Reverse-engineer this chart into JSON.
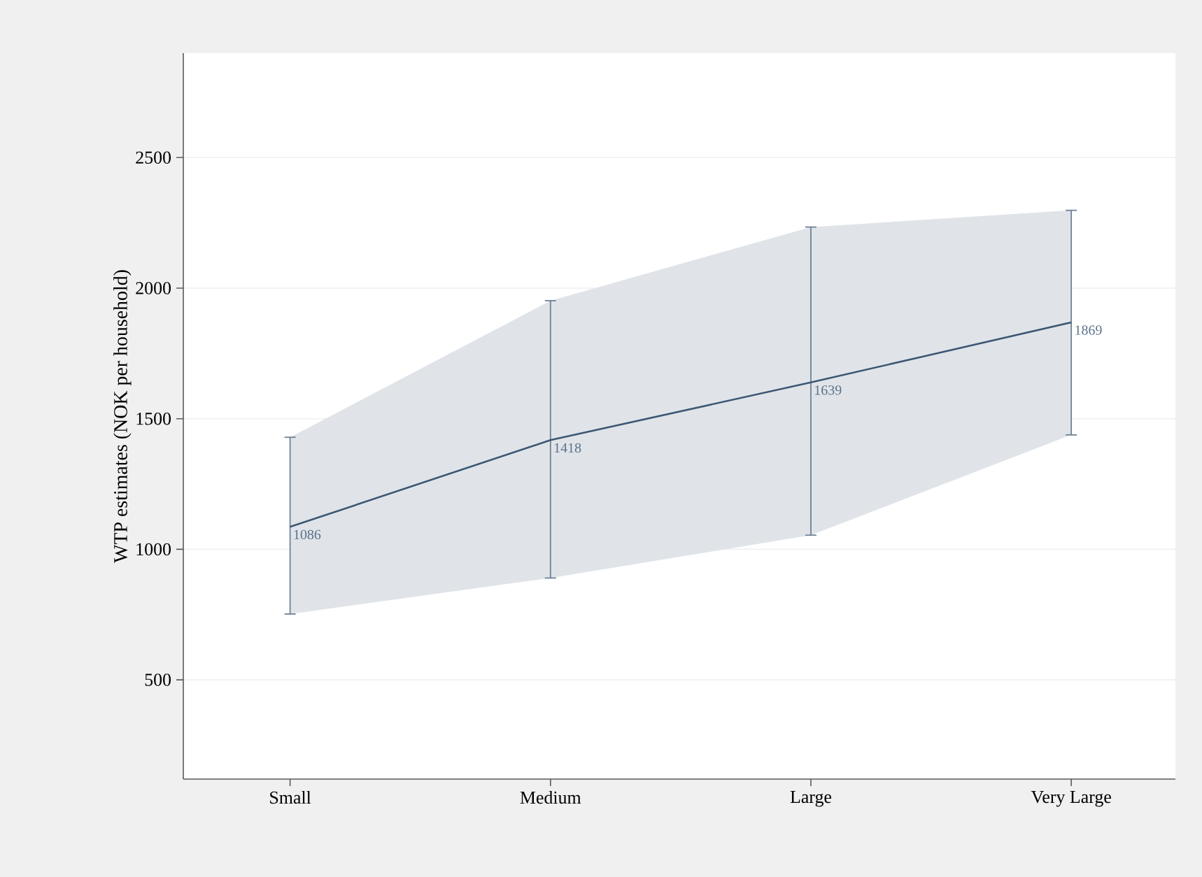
{
  "chart_data": {
    "type": "line",
    "ylabel": "WTP estimates (NOK per household)",
    "categories": [
      "Small",
      "Medium",
      "Large",
      "Very Large"
    ],
    "series": [
      {
        "color": "#3d5873",
        "values": [
          1086,
          1418,
          1639,
          1869
        ],
        "lower": [
          752,
          890,
          1054,
          1438
        ],
        "upper": [
          1429,
          1952,
          2234,
          2298
        ],
        "errors": [
          [
            752,
            1429
          ],
          [
            890,
            1952
          ],
          [
            1054,
            2234
          ],
          [
            1438,
            2298
          ]
        ]
      }
    ],
    "ylim": [
      120,
      2900
    ],
    "yticks": [
      500,
      1000,
      1500,
      2000,
      2500
    ],
    "grid": "y",
    "data_labels": true
  }
}
